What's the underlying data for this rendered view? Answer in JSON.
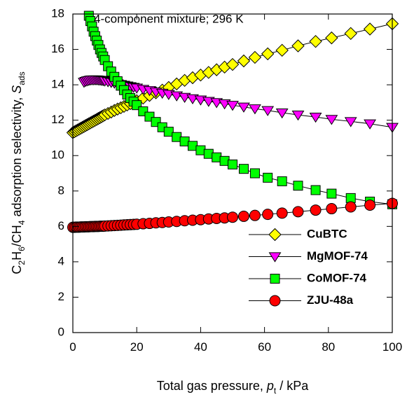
{
  "chart_data": {
    "type": "scatter",
    "annotation": "4-component mixture; 296 K",
    "xlabel": {
      "main": "Total gas pressure, ",
      "var": "p",
      "sub": "t",
      "unit": " / kPa"
    },
    "ylabel": {
      "p1": "C",
      "s1": "2",
      "p2": "H",
      "s2": "6",
      "p3": "/CH",
      "s3": "4",
      "p4": " adsorption selectivity, ",
      "var": "S",
      "sub": "ads"
    },
    "xlim": [
      0,
      100
    ],
    "ylim": [
      0,
      18
    ],
    "xticks": [
      0,
      20,
      40,
      60,
      80,
      100
    ],
    "yticks": [
      0,
      2,
      4,
      6,
      8,
      10,
      12,
      14,
      16,
      18
    ],
    "legend_position": "right",
    "grid": false,
    "series": [
      {
        "name": "CuBTC",
        "marker": "diamond",
        "color": "#ffff00",
        "x": [
          0.0,
          0.5,
          1.0,
          1.5,
          2.0,
          2.5,
          3.0,
          3.5,
          4.0,
          4.5,
          5.0,
          5.5,
          6.0,
          6.5,
          7.0,
          7.5,
          8.0,
          8.5,
          9.0,
          9.5,
          10.0,
          11.0,
          12.0,
          13.0,
          14.0,
          15.0,
          16.0,
          17.0,
          18.0,
          19.0,
          20.0,
          22.0,
          24.0,
          26.0,
          28.0,
          30.0,
          32.5,
          35.0,
          37.5,
          40.0,
          42.5,
          45.0,
          47.5,
          50.0,
          53.5,
          57.0,
          61.0,
          65.5,
          70.5,
          76.0,
          81.0,
          87.0,
          93.0,
          100.0
        ],
        "y": [
          11.3,
          11.35,
          11.4,
          11.45,
          11.5,
          11.55,
          11.6,
          11.65,
          11.7,
          11.75,
          11.8,
          11.85,
          11.9,
          11.95,
          12.0,
          12.05,
          12.1,
          12.15,
          12.2,
          12.25,
          12.3,
          12.38,
          12.46,
          12.55,
          12.63,
          12.7,
          12.78,
          12.86,
          12.94,
          13.02,
          13.1,
          13.25,
          13.4,
          13.55,
          13.7,
          13.85,
          14.05,
          14.25,
          14.4,
          14.55,
          14.7,
          14.85,
          15.0,
          15.15,
          15.35,
          15.55,
          15.75,
          15.95,
          16.2,
          16.45,
          16.65,
          16.9,
          17.15,
          17.45
        ]
      },
      {
        "name": "MgMOF-74",
        "marker": "triangle-down",
        "color": "#ff00ff",
        "x": [
          3.5,
          4.0,
          4.5,
          5.0,
          5.5,
          6.0,
          6.5,
          7.0,
          7.5,
          8.0,
          8.5,
          9.0,
          9.5,
          10.0,
          11.0,
          12.0,
          13.0,
          14.0,
          15.0,
          16.0,
          17.0,
          18.0,
          19.0,
          20.0,
          22.0,
          24.0,
          26.0,
          28.0,
          30.0,
          32.5,
          35.0,
          37.5,
          40.0,
          42.5,
          45.0,
          47.5,
          50.0,
          53.5,
          57.0,
          61.0,
          65.5,
          70.5,
          76.0,
          81.0,
          87.0,
          93.0,
          100.0
        ],
        "y": [
          14.15,
          14.2,
          14.23,
          14.25,
          14.27,
          14.28,
          14.28,
          14.28,
          14.28,
          14.27,
          14.26,
          14.25,
          14.24,
          14.22,
          14.18,
          14.14,
          14.1,
          14.06,
          14.02,
          13.98,
          13.94,
          13.9,
          13.86,
          13.82,
          13.75,
          13.68,
          13.6,
          13.53,
          13.46,
          13.38,
          13.3,
          13.22,
          13.15,
          13.07,
          13.0,
          12.93,
          12.85,
          12.75,
          12.65,
          12.55,
          12.42,
          12.3,
          12.18,
          12.05,
          11.93,
          11.8,
          11.6
        ]
      },
      {
        "name": "CoMOF-74",
        "marker": "square",
        "color": "#00ff00",
        "x": [
          5.0,
          5.5,
          6.0,
          6.5,
          7.0,
          7.5,
          8.0,
          8.5,
          9.0,
          9.5,
          10.0,
          11.0,
          12.0,
          13.0,
          14.0,
          15.0,
          16.0,
          17.0,
          18.0,
          19.0,
          20.0,
          22.0,
          24.0,
          26.0,
          28.0,
          30.0,
          32.5,
          35.0,
          37.5,
          40.0,
          42.5,
          45.0,
          47.5,
          50.0,
          53.5,
          57.0,
          61.0,
          65.5,
          70.5,
          76.0,
          81.0,
          87.0,
          93.0,
          100.0
        ],
        "y": [
          17.9,
          17.6,
          17.3,
          17.0,
          16.75,
          16.5,
          16.25,
          16.0,
          15.8,
          15.6,
          15.4,
          15.05,
          14.75,
          14.45,
          14.2,
          13.95,
          13.7,
          13.45,
          13.25,
          13.05,
          12.85,
          12.5,
          12.2,
          11.9,
          11.6,
          11.35,
          11.05,
          10.8,
          10.55,
          10.3,
          10.1,
          9.9,
          9.7,
          9.5,
          9.25,
          9.0,
          8.75,
          8.55,
          8.3,
          8.05,
          7.85,
          7.6,
          7.4,
          7.25
        ]
      },
      {
        "name": "ZJU-48a",
        "marker": "circle",
        "color": "#ff0000",
        "x": [
          0.0,
          0.5,
          1.0,
          1.5,
          2.0,
          2.5,
          3.0,
          3.5,
          4.0,
          4.5,
          5.0,
          5.5,
          6.0,
          6.5,
          7.0,
          7.5,
          8.0,
          8.5,
          9.0,
          9.5,
          10.0,
          11.0,
          12.0,
          13.0,
          14.0,
          15.0,
          16.0,
          17.0,
          18.0,
          19.0,
          20.0,
          22.0,
          24.0,
          26.0,
          28.0,
          30.0,
          32.5,
          35.0,
          37.5,
          40.0,
          42.5,
          45.0,
          47.5,
          50.0,
          53.5,
          57.0,
          61.0,
          65.5,
          70.5,
          76.0,
          81.0,
          87.0,
          93.0,
          100.0
        ],
        "y": [
          5.95,
          5.95,
          5.96,
          5.96,
          5.96,
          5.97,
          5.97,
          5.97,
          5.98,
          5.98,
          5.98,
          5.99,
          5.99,
          5.99,
          6.0,
          6.0,
          6.0,
          6.01,
          6.01,
          6.01,
          6.02,
          6.03,
          6.04,
          6.05,
          6.06,
          6.07,
          6.08,
          6.09,
          6.1,
          6.11,
          6.12,
          6.15,
          6.17,
          6.2,
          6.22,
          6.25,
          6.28,
          6.32,
          6.35,
          6.38,
          6.42,
          6.45,
          6.48,
          6.52,
          6.57,
          6.62,
          6.68,
          6.75,
          6.83,
          6.92,
          7.0,
          7.1,
          7.2,
          7.3
        ]
      }
    ]
  }
}
